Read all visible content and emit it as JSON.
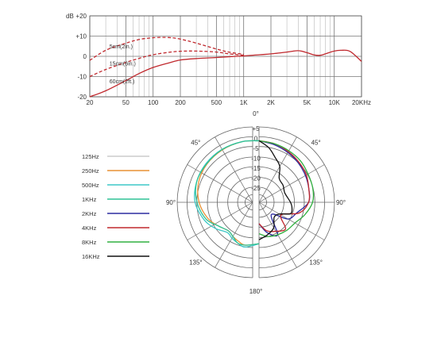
{
  "chart_data": [
    {
      "type": "line",
      "x_scale": "log",
      "xlim": [
        20,
        20000
      ],
      "ylim": [
        -20,
        20
      ],
      "y_unit": "dB",
      "x_ticks": [
        {
          "value": 20,
          "label": "20"
        },
        {
          "value": 50,
          "label": "50"
        },
        {
          "value": 100,
          "label": "100"
        },
        {
          "value": 200,
          "label": "200"
        },
        {
          "value": 500,
          "label": "500"
        },
        {
          "value": 1000,
          "label": "1K"
        },
        {
          "value": 2000,
          "label": "2K"
        },
        {
          "value": 5000,
          "label": "5K"
        },
        {
          "value": 10000,
          "label": "10K"
        },
        {
          "value": 20000,
          "label": "20KHz"
        }
      ],
      "y_ticks": [
        {
          "value": 20,
          "label": "+20"
        },
        {
          "value": 10,
          "label": "+10"
        },
        {
          "value": 0,
          "label": "0"
        },
        {
          "value": -10,
          "label": "-10"
        },
        {
          "value": -20,
          "label": "-20"
        }
      ],
      "grid": true,
      "color": "#c0282d",
      "series": [
        {
          "name": "5cm(2in.)",
          "dash": true,
          "label_at": [
            33,
            4
          ],
          "x": [
            20,
            30,
            50,
            70,
            100,
            150,
            200,
            300,
            500,
            700,
            1000
          ],
          "y": [
            -2,
            3,
            6.5,
            8.3,
            9.2,
            9.3,
            8.5,
            6.5,
            3.6,
            2.0,
            1.0
          ]
        },
        {
          "name": "15cm(6in.)",
          "dash": true,
          "label_at": [
            33,
            -4.5
          ],
          "x": [
            20,
            30,
            50,
            70,
            100,
            150,
            200,
            300,
            500,
            700,
            1000
          ],
          "y": [
            -10,
            -6.5,
            -3,
            -1,
            0.8,
            2.0,
            2.5,
            2.6,
            2.1,
            1.2,
            0.5
          ]
        },
        {
          "name": "60cm(2ft.)",
          "dash": false,
          "label_at": [
            33,
            -13.3
          ],
          "x": [
            20,
            30,
            50,
            70,
            100,
            150,
            200,
            300,
            500,
            700,
            1000,
            1500,
            2000,
            3000,
            4000,
            5000,
            6000,
            7000,
            8000,
            10000,
            12000,
            15000,
            20000
          ],
          "y": [
            -20,
            -17,
            -12,
            -8.5,
            -5.5,
            -3.2,
            -1.8,
            -1.1,
            -0.6,
            -0.2,
            0.2,
            0.8,
            1.2,
            2.1,
            2.8,
            1.8,
            0.7,
            0.5,
            1.2,
            2.6,
            3.0,
            2.4,
            -2.5
          ]
        }
      ]
    },
    {
      "type": "polar",
      "r_scale_db": [
        -25,
        5
      ],
      "r_ticks": [
        "+5",
        "0",
        "-5",
        "-10",
        "-15",
        "-20",
        "-25"
      ],
      "angle_labels": [
        {
          "deg": 0,
          "label": "0°"
        },
        {
          "deg": 45,
          "label": "45°"
        },
        {
          "deg": 90,
          "label": "90°"
        },
        {
          "deg": 135,
          "label": "135°"
        },
        {
          "deg": 180,
          "label": "180°"
        },
        {
          "deg": 225,
          "label": "135°"
        },
        {
          "deg": 270,
          "label": "90°"
        },
        {
          "deg": 315,
          "label": "45°"
        }
      ],
      "series": [
        {
          "name": "125Hz",
          "color": "#cccccc",
          "angles": [],
          "db": []
        },
        {
          "name": "250Hz",
          "color": "#e89134",
          "angles": [
            180,
            190,
            200,
            210,
            220,
            235,
            250,
            270,
            290,
            310,
            330,
            350,
            360
          ],
          "db": [
            -10,
            -9,
            -10,
            -11,
            -12,
            -10,
            -7,
            -4,
            -2,
            -1,
            -0.5,
            0,
            0
          ]
        },
        {
          "name": "500Hz",
          "color": "#3ec7c7",
          "angles": [
            180,
            190,
            200,
            210,
            220,
            235,
            250,
            270,
            290,
            310,
            330,
            350,
            360
          ],
          "db": [
            -10,
            -8,
            -9,
            -10,
            -11,
            -8,
            -5,
            -2,
            -1,
            -0.5,
            -0.2,
            0,
            0
          ]
        },
        {
          "name": "1KHz",
          "color": "#2ec295",
          "angles": [
            180,
            190,
            200,
            210,
            220,
            235,
            250,
            270,
            290,
            310,
            330,
            350,
            360
          ],
          "db": [
            -10,
            -9,
            -9,
            -11,
            -12,
            -10,
            -6,
            -3,
            -1,
            -0.8,
            -0.3,
            0,
            0
          ]
        },
        {
          "name": "2KHz",
          "color": "#2c2ca0",
          "angles": [
            0,
            15,
            30,
            45,
            60,
            75,
            90,
            105,
            120,
            135,
            150,
            165,
            180
          ],
          "db": [
            0,
            -1,
            -2,
            -3,
            -4,
            -5,
            -6,
            -11,
            -14,
            -22,
            -12,
            -15,
            -20
          ]
        },
        {
          "name": "4KHz",
          "color": "#c0282d",
          "angles": [
            0,
            15,
            30,
            45,
            60,
            75,
            90,
            105,
            120,
            135,
            150,
            165,
            180
          ],
          "db": [
            0,
            -0.5,
            -1.5,
            -2.5,
            -3.5,
            -5,
            -6,
            -10,
            -18,
            -12,
            -14,
            -16,
            -20
          ]
        },
        {
          "name": "8KHz",
          "color": "#30b040",
          "angles": [
            0,
            15,
            30,
            45,
            60,
            75,
            90,
            105,
            120,
            135,
            150,
            165,
            180
          ],
          "db": [
            0,
            -0.5,
            -1,
            -1.5,
            -2.5,
            -3,
            -4,
            -7,
            -10,
            -11,
            -12,
            -13,
            -15
          ]
        },
        {
          "name": "16KHz",
          "color": "#111111",
          "angles": [
            0,
            10,
            20,
            30,
            40,
            55,
            70,
            90,
            100,
            110,
            120,
            135,
            150,
            165,
            180
          ],
          "db": [
            0,
            -3,
            -7,
            -10,
            -15,
            -16,
            -17,
            -15,
            -14,
            -14,
            -19,
            -20,
            -16,
            -14,
            -12
          ]
        }
      ]
    }
  ]
}
